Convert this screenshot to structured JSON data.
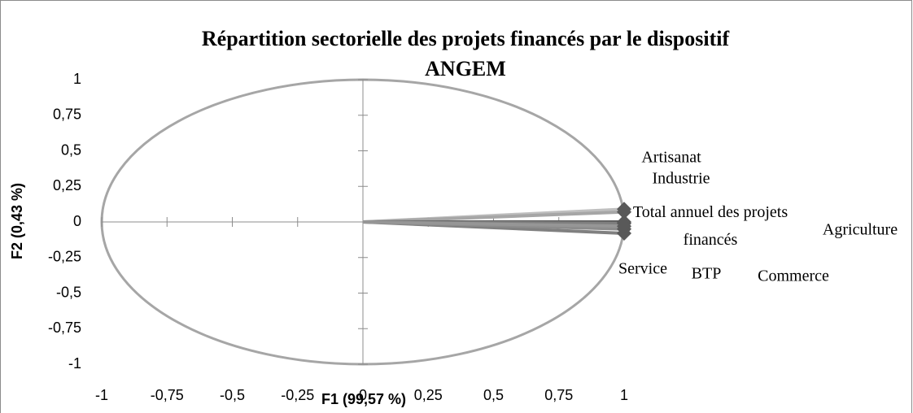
{
  "chart_data": {
    "type": "vectors",
    "title": [
      "Répartition sectorielle des projets financés par le dispositif",
      "ANGEM"
    ],
    "xlabel": "F1 (99,57 %)",
    "ylabel": "F2 (0,43 %)",
    "xlim": [
      -1,
      1
    ],
    "ylim": [
      -1,
      1
    ],
    "xticks": [
      {
        "value": -1,
        "label": "-1"
      },
      {
        "value": -0.75,
        "label": "-0,75"
      },
      {
        "value": -0.5,
        "label": "-0,5"
      },
      {
        "value": -0.25,
        "label": "-0,25"
      },
      0,
      {
        "value": 0.25,
        "label": "0,25"
      },
      {
        "value": 0.5,
        "label": "0,5"
      },
      {
        "value": 0.75,
        "label": "0,75"
      },
      1
    ],
    "yticks": [
      1,
      {
        "value": 0.75,
        "label": "0,75"
      },
      {
        "value": 0.5,
        "label": "0,5"
      },
      {
        "value": 0.25,
        "label": "0,25"
      },
      0,
      {
        "value": -0.25,
        "label": "-0,25"
      },
      {
        "value": -0.5,
        "label": "-0,5"
      },
      {
        "value": -0.75,
        "label": "-0,75"
      },
      -1
    ],
    "marker_color": "#595959",
    "circle_color": "#a6a6a6",
    "series": [
      {
        "name": "Artisanat",
        "color": "#bfbfbf",
        "x": 1,
        "y": 0.09
      },
      {
        "name": "Industrie",
        "color": "#a6a6a6",
        "x": 1,
        "y": 0.07
      },
      {
        "name": "Total annuel des projets financés",
        "color": "#595959",
        "x": 1,
        "y": 0.0
      },
      {
        "name": "Agriculture",
        "color": "#7f7f7f",
        "x": 1,
        "y": -0.01
      },
      {
        "name": "Service",
        "color": "#808080",
        "x": 1,
        "y": -0.08
      },
      {
        "name": "BTP",
        "color": "#8c8c8c",
        "x": 1,
        "y": -0.05
      },
      {
        "name": "Commerce",
        "color": "#969696",
        "x": 1,
        "y": -0.03
      }
    ]
  }
}
